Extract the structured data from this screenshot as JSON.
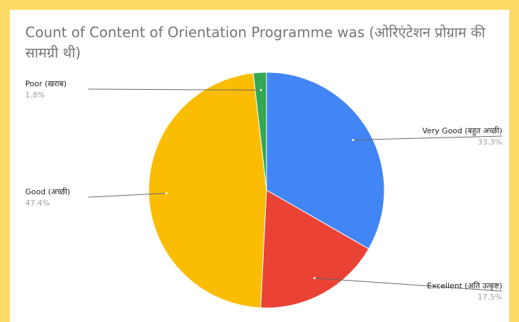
{
  "chart_data": {
    "type": "pie",
    "title": "Count of Content of Orientation Programme was (ओरिएंटेशन प्रोग्राम की सामग्री थी)",
    "slices": [
      {
        "label": "Very Good (बहुत अच्छी)",
        "percent_label": "33.3%",
        "value": 33.3,
        "color": "#4285f4"
      },
      {
        "label": "Excellent (अति उत्कृष्ट)",
        "percent_label": "17.5%",
        "value": 17.5,
        "color": "#ea4335"
      },
      {
        "label": "Good (अच्छी)",
        "percent_label": "47.4%",
        "value": 47.4,
        "color": "#fbbc04"
      },
      {
        "label": "Poor (खराब)",
        "percent_label": "1.8%",
        "value": 1.8,
        "color": "#34a853"
      }
    ]
  }
}
